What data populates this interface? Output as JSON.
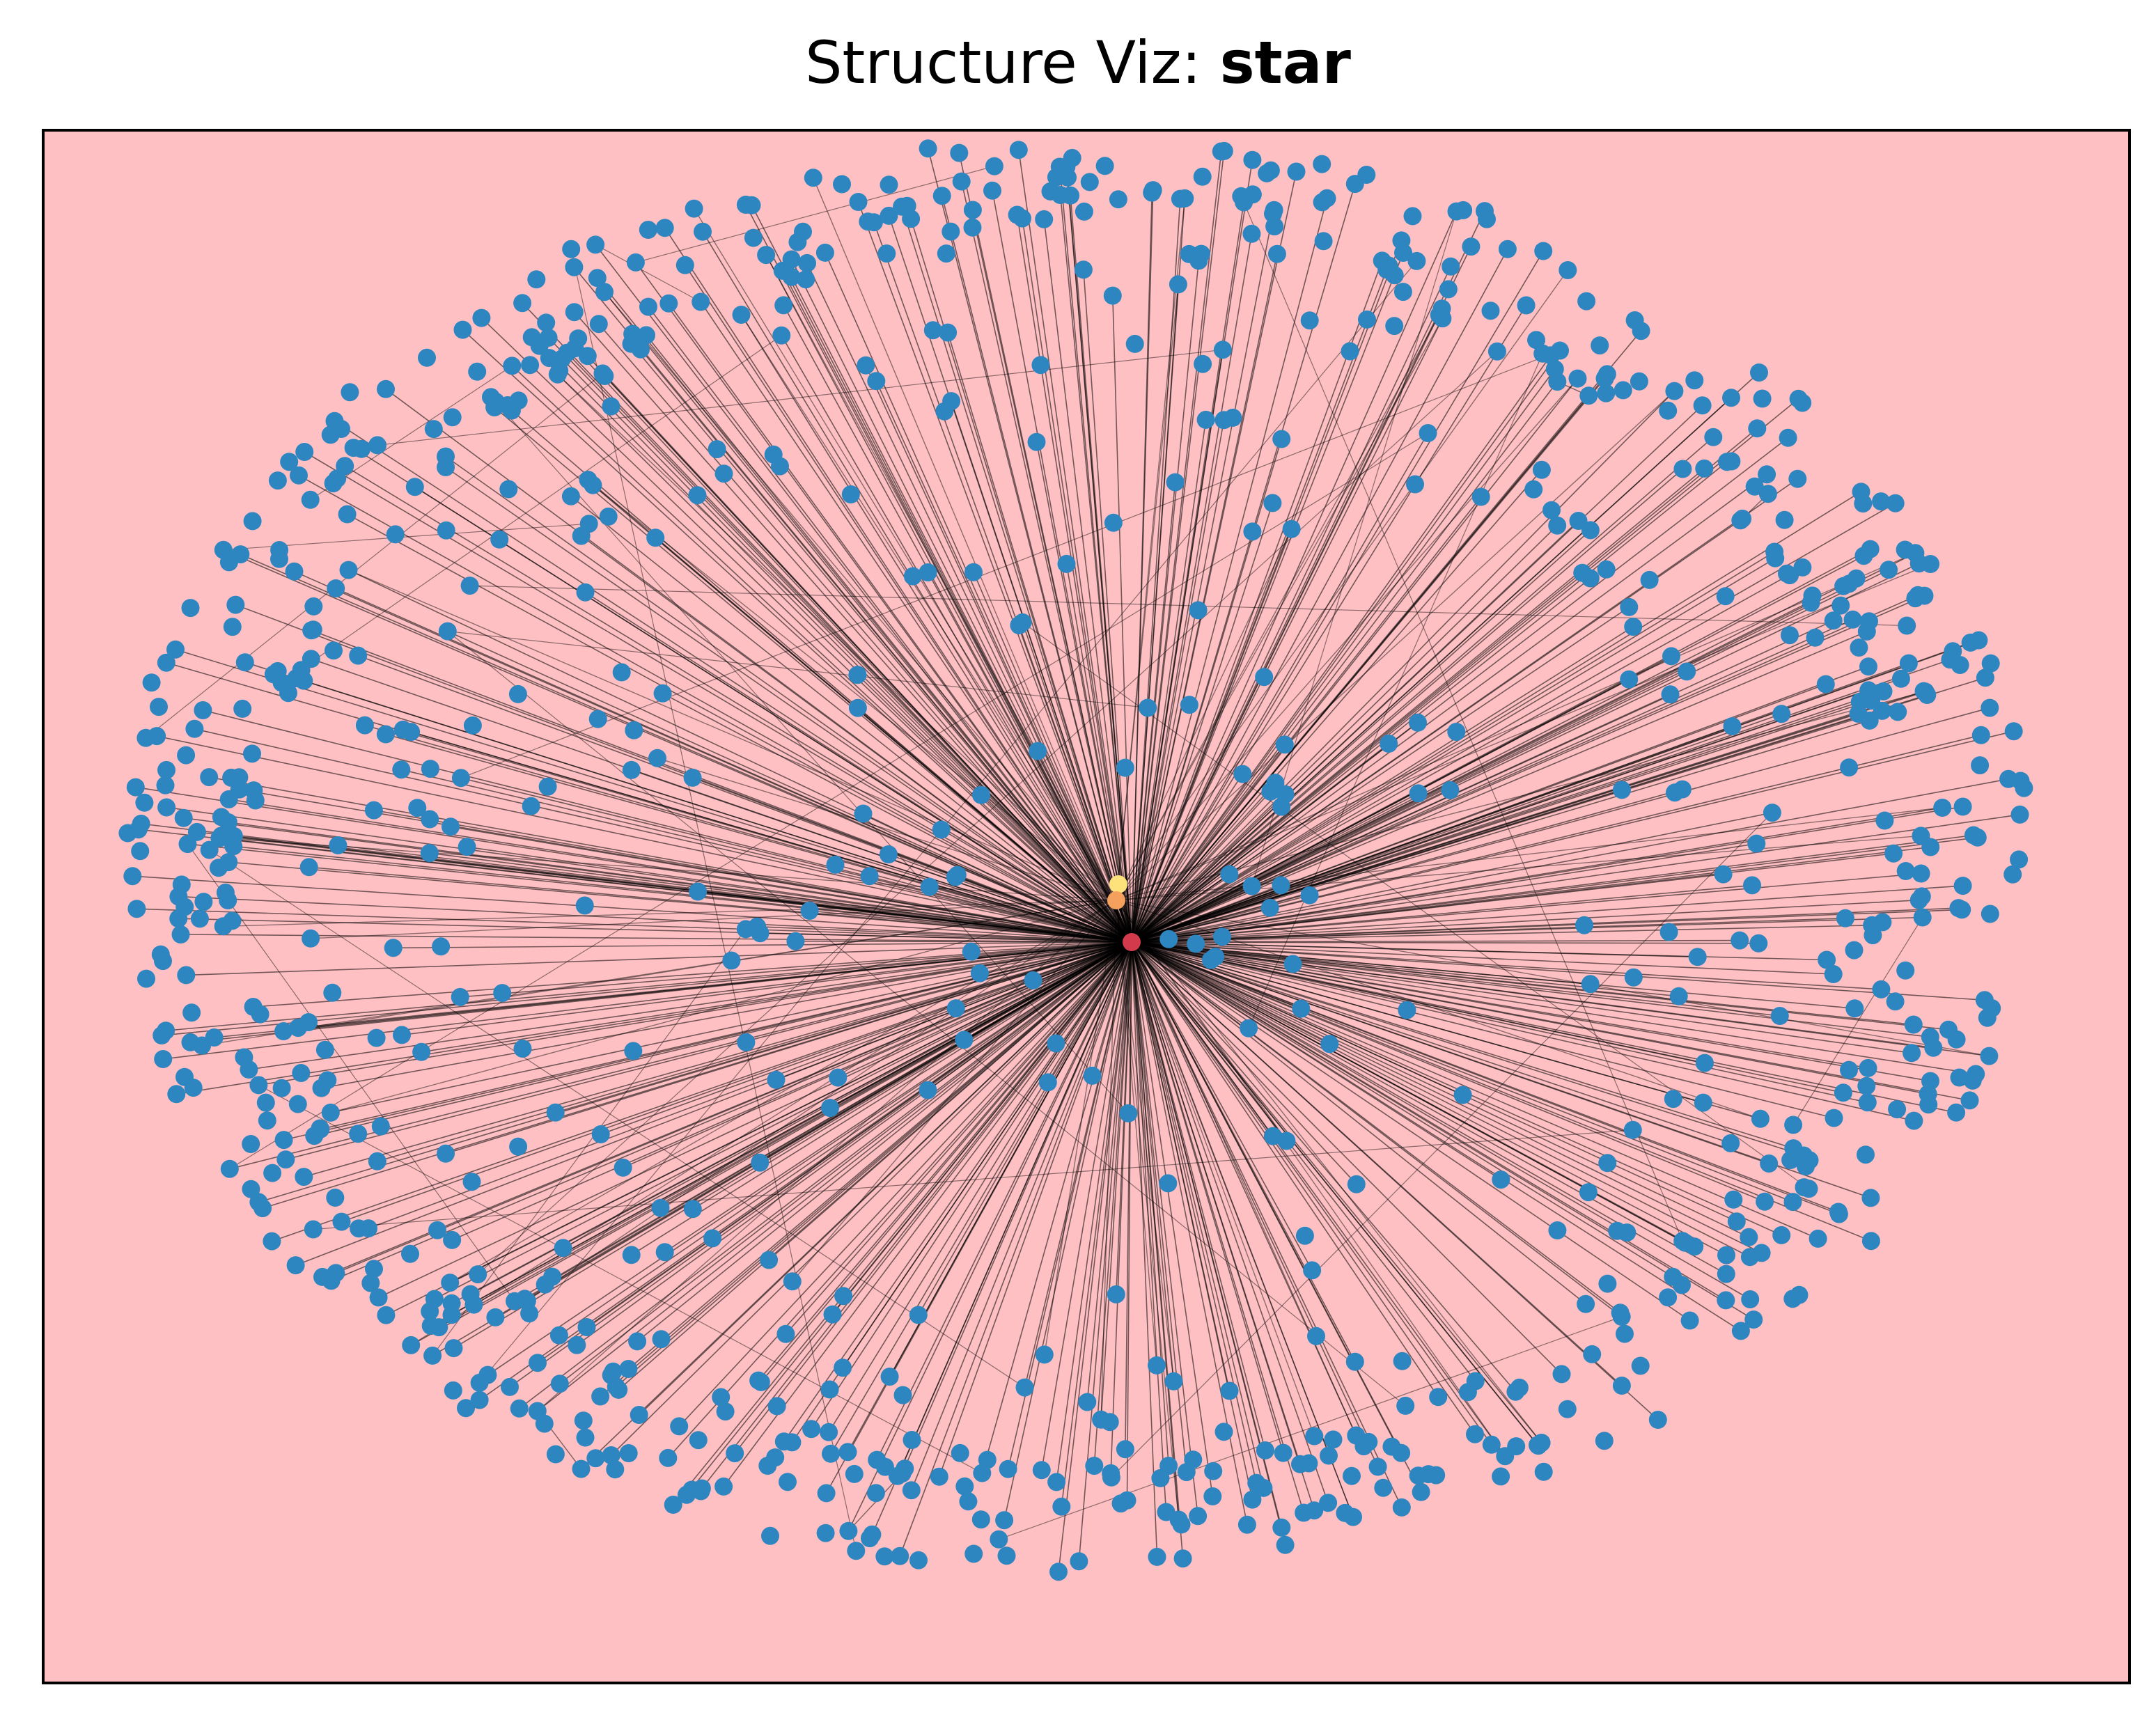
{
  "title": {
    "prefix": "Structure Viz: ",
    "structure": "star"
  },
  "colors": {
    "plot_background": "#ffc0c3",
    "leaf_node": "#2e86c1",
    "hub_node": "#d33a4c",
    "secondary_node_1": "#f5a05c",
    "secondary_node_2": "#fde27c",
    "edge": "#000000",
    "frame": "#000000"
  },
  "graph": {
    "type": "star",
    "hub_count": 1,
    "secondary_nodes": 2,
    "approx_leaf_nodes": 950
  }
}
